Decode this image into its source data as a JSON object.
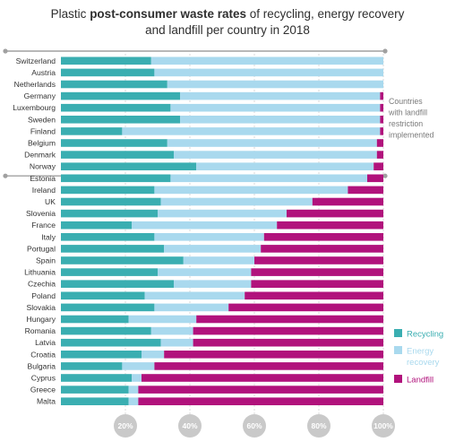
{
  "chart_data": {
    "type": "bar",
    "orientation": "horizontal",
    "stacked": true,
    "title_prefix": "Plastic ",
    "title_bold": "post-consumer waste rates",
    "title_suffix": " of recycling, energy recovery",
    "title_line2": "and landfill per country in 2018",
    "categories": [
      "Switzerland",
      "Austria",
      "Netherlands",
      "Germany",
      "Luxembourg",
      "Sweden",
      "Finland",
      "Belgium",
      "Denmark",
      "Norway",
      "Estonia",
      "Ireland",
      "UK",
      "Slovenia",
      "France",
      "Italy",
      "Portugal",
      "Spain",
      "Lithuania",
      "Czechia",
      "Poland",
      "Slovakia",
      "Hungary",
      "Romania",
      "Latvia",
      "Croatia",
      "Bulgaria",
      "Cyprus",
      "Greece",
      "Malta"
    ],
    "series": [
      {
        "name": "Recycling",
        "color": "#3aaeb1",
        "values": [
          28,
          29,
          33,
          37,
          34,
          37,
          19,
          33,
          35,
          42,
          34,
          29,
          31,
          30,
          22,
          29,
          32,
          38,
          30,
          35,
          26,
          29,
          21,
          28,
          31,
          25,
          19,
          22,
          21,
          21
        ]
      },
      {
        "name": "Energy recovery",
        "color": "#a9d9ee",
        "values": [
          72,
          71,
          67,
          62,
          65,
          62,
          80,
          65,
          63,
          55,
          61,
          60,
          47,
          40,
          45,
          34,
          30,
          22,
          29,
          24,
          31,
          23,
          21,
          13,
          10,
          7,
          10,
          3,
          3,
          3
        ]
      },
      {
        "name": "Landfill",
        "color": "#b1127c",
        "values": [
          0,
          0,
          0,
          1,
          1,
          1,
          1,
          2,
          2,
          3,
          5,
          11,
          22,
          30,
          33,
          37,
          38,
          40,
          41,
          41,
          43,
          48,
          58,
          59,
          59,
          68,
          71,
          75,
          76,
          76
        ]
      }
    ],
    "xlim": [
      0,
      100
    ],
    "xticks": [
      "20%",
      "40%",
      "60%",
      "80%",
      "100%"
    ],
    "xtick_values": [
      20,
      40,
      60,
      80,
      100
    ],
    "group_break_after": "Norway",
    "group_note": [
      "Countries",
      "with landfill",
      "restriction",
      "implemented"
    ]
  }
}
